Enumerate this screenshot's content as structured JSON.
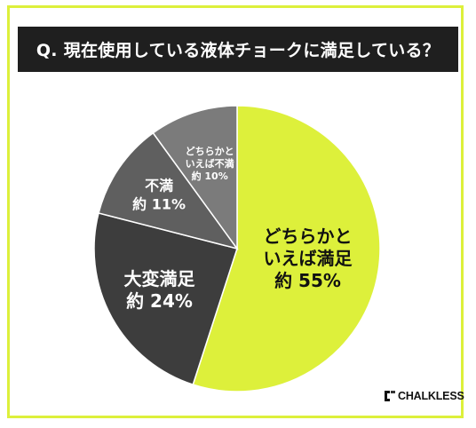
{
  "question": "Q. 現在使用している液体チョークに満足している？",
  "brand": "CHALKLESS",
  "chart_data": {
    "type": "pie",
    "title": "Q. 現在使用している液体チョークに満足している？",
    "start": "12 o'clock, clockwise",
    "slices": [
      {
        "lines": [
          "どちらかと",
          "いえば満足"
        ],
        "value_label": "約 55%",
        "value": 55,
        "color": "#ddf03b",
        "text_color": "#111111"
      },
      {
        "lines": [
          "大変満足"
        ],
        "value_label": "約 24%",
        "value": 24,
        "color": "#3d3d3d",
        "text_color": "#ffffff"
      },
      {
        "lines": [
          "不満"
        ],
        "value_label": "約 11%",
        "value": 11,
        "color": "#5f5f5f",
        "text_color": "#ffffff"
      },
      {
        "lines": [
          "どちらかと",
          "いえば不満"
        ],
        "value_label": "約 10%",
        "value": 10,
        "color": "#7b7b7b",
        "text_color": "#ffffff"
      }
    ]
  }
}
